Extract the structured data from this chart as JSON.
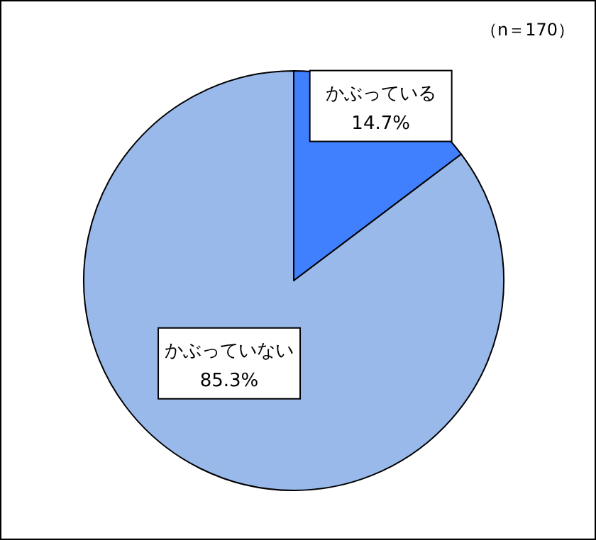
{
  "chart_data": {
    "type": "pie",
    "categories": [
      "かぶっている",
      "かぶっていない"
    ],
    "values": [
      14.7,
      85.3
    ],
    "colors": [
      "#4080ff",
      "#99b9eb"
    ],
    "value_labels": [
      "14.7%",
      "85.3%"
    ],
    "annotations": [
      "（n＝170）"
    ]
  }
}
